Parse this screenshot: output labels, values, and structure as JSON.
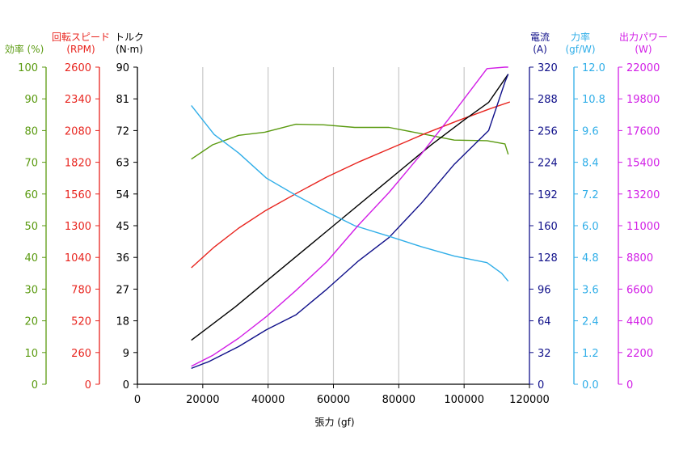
{
  "chart_data": {
    "type": "line",
    "xlabel": "張力 (gf)",
    "xlim": [
      0,
      120000
    ],
    "xticks": [
      0,
      20000,
      40000,
      60000,
      80000,
      100000,
      120000
    ],
    "grid": "vertical",
    "axes": [
      {
        "key": "eff",
        "title1": "効率 (%)",
        "title2": "",
        "color": "#5a9a10",
        "min": 0,
        "max": 100,
        "ticks": [
          0,
          10,
          20,
          30,
          40,
          50,
          60,
          70,
          80,
          90,
          100
        ]
      },
      {
        "key": "rpm",
        "title1": "回転スピード",
        "title2": "(RPM)",
        "color": "#e8241e",
        "min": 0,
        "max": 2600,
        "ticks": [
          0,
          260,
          520,
          780,
          1040,
          1300,
          1560,
          1820,
          2080,
          2340,
          2600
        ]
      },
      {
        "key": "torque",
        "title1": "トルク",
        "title2": "(N·m)",
        "color": "#000000",
        "min": 0,
        "max": 90,
        "ticks": [
          0,
          9,
          18,
          27,
          36,
          45,
          54,
          63,
          72,
          81,
          90
        ]
      },
      {
        "key": "current",
        "title1": "電流",
        "title2": "(A)",
        "color": "#10108a",
        "min": 0,
        "max": 320,
        "ticks": [
          0,
          32,
          64,
          96,
          128,
          160,
          192,
          224,
          256,
          288,
          320
        ]
      },
      {
        "key": "force",
        "title1": "力率",
        "title2": "(gf/W)",
        "color": "#30aee8",
        "min": 0,
        "max": 12,
        "ticks": [
          "0.0",
          "1.2",
          "2.4",
          "3.6",
          "4.8",
          "6.0",
          "7.2",
          "8.4",
          "9.6",
          "10.8",
          "12.0"
        ]
      },
      {
        "key": "power",
        "title1": "出力パワー",
        "title2": "(W)",
        "color": "#d21ee6",
        "min": 0,
        "max": 22000,
        "ticks": [
          0,
          2200,
          4400,
          6600,
          8800,
          11000,
          13200,
          15400,
          17600,
          19800,
          22000
        ]
      }
    ],
    "series": [
      {
        "axis": "eff",
        "color": "#5a9a10",
        "points": [
          [
            16500,
            71
          ],
          [
            23000,
            75.5
          ],
          [
            31000,
            78.5
          ],
          [
            39000,
            79.5
          ],
          [
            48500,
            82
          ],
          [
            57000,
            81.8
          ],
          [
            66500,
            81
          ],
          [
            77000,
            81
          ],
          [
            87000,
            79
          ],
          [
            97000,
            77
          ],
          [
            107000,
            76.8
          ],
          [
            112500,
            75.8
          ],
          [
            113500,
            72.5
          ]
        ]
      },
      {
        "axis": "rpm",
        "color": "#e8241e",
        "points": [
          [
            16500,
            955
          ],
          [
            23500,
            1125
          ],
          [
            31000,
            1280
          ],
          [
            39000,
            1420
          ],
          [
            49000,
            1570
          ],
          [
            58000,
            1700
          ],
          [
            68000,
            1825
          ],
          [
            78000,
            1940
          ],
          [
            88000,
            2055
          ],
          [
            98000,
            2160
          ],
          [
            108000,
            2260
          ],
          [
            114000,
            2315
          ]
        ]
      },
      {
        "axis": "torque",
        "color": "#000000",
        "points": [
          [
            16500,
            12.5
          ],
          [
            30000,
            22
          ],
          [
            45000,
            33.5
          ],
          [
            60000,
            45
          ],
          [
            75000,
            56.5
          ],
          [
            90000,
            68
          ],
          [
            100000,
            75
          ],
          [
            107500,
            80
          ],
          [
            113500,
            88
          ]
        ]
      },
      {
        "axis": "current",
        "color": "#10108a",
        "points": [
          [
            16500,
            16
          ],
          [
            22000,
            23
          ],
          [
            31000,
            38
          ],
          [
            39500,
            55
          ],
          [
            48500,
            70
          ],
          [
            58000,
            96
          ],
          [
            67500,
            124
          ],
          [
            77000,
            148
          ],
          [
            87000,
            183
          ],
          [
            97000,
            222
          ],
          [
            107500,
            256
          ],
          [
            112500,
            305
          ],
          [
            113500,
            313
          ]
        ]
      },
      {
        "axis": "force",
        "color": "#30aee8",
        "points": [
          [
            16500,
            10.55
          ],
          [
            23500,
            9.45
          ],
          [
            31000,
            8.75
          ],
          [
            39500,
            7.8
          ],
          [
            48500,
            7.15
          ],
          [
            57500,
            6.55
          ],
          [
            66500,
            6.0
          ],
          [
            77000,
            5.6
          ],
          [
            87000,
            5.2
          ],
          [
            97000,
            4.85
          ],
          [
            107000,
            4.6
          ],
          [
            111500,
            4.2
          ],
          [
            113500,
            3.9
          ]
        ]
      },
      {
        "axis": "power",
        "color": "#d21ee6",
        "points": [
          [
            16500,
            1250
          ],
          [
            23000,
            2000
          ],
          [
            31000,
            3200
          ],
          [
            39500,
            4700
          ],
          [
            48500,
            6500
          ],
          [
            58000,
            8500
          ],
          [
            67500,
            11000
          ],
          [
            77000,
            13300
          ],
          [
            87000,
            16000
          ],
          [
            97000,
            18900
          ],
          [
            107000,
            21900
          ],
          [
            112500,
            22000
          ],
          [
            113500,
            22000
          ]
        ]
      }
    ]
  }
}
